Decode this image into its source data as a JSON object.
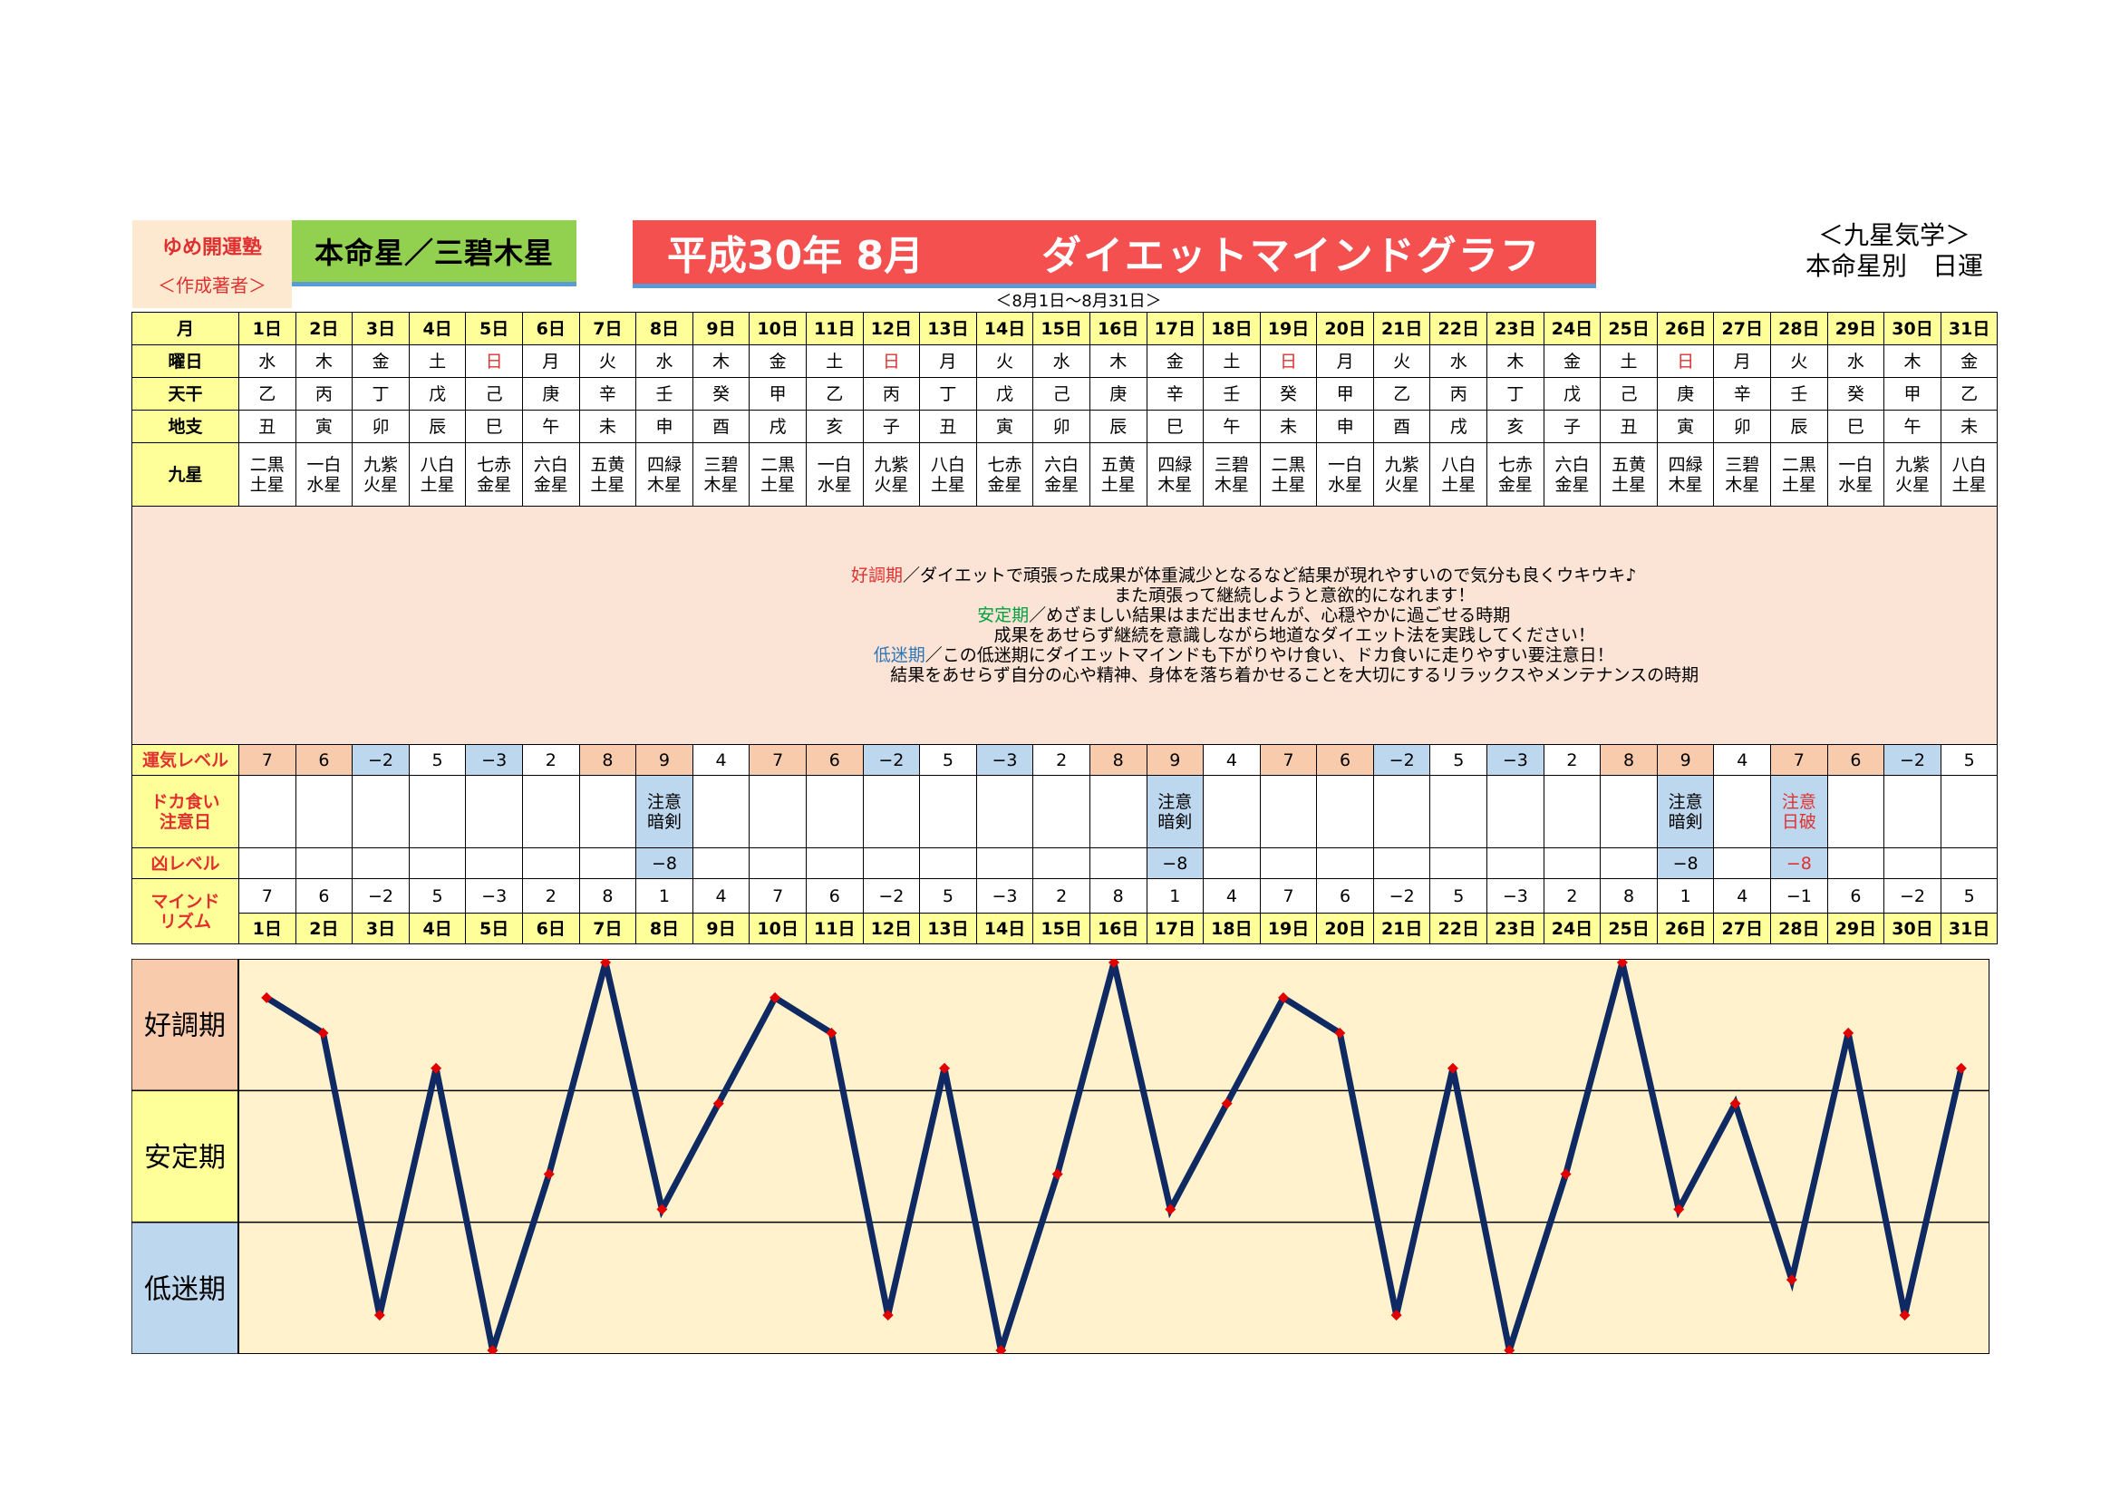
{
  "header": {
    "brand_name": "ゆめ開運塾",
    "brand_sub": "＜作成著者＞",
    "honmei": "本命星／三碧木星",
    "title_date": "平成30年 8月",
    "title_main": "ダイエットマインドグラフ",
    "kyusei_line1": "＜九星気学＞",
    "kyusei_line2": "本命星別　日運",
    "range": "＜8月1日～8月31日＞"
  },
  "row_labels": {
    "month": "月",
    "weekday": "曜日",
    "tenkan": "天干",
    "chishi": "地支",
    "kyusei": "九星",
    "luck": "運気レベル",
    "binge_1": "ドカ食い",
    "binge_2": "注意日",
    "bad": "凶レベル",
    "mind_1": "マインド",
    "mind_2": "リズム"
  },
  "days": [
    "1日",
    "2日",
    "3日",
    "4日",
    "5日",
    "6日",
    "7日",
    "8日",
    "9日",
    "10日",
    "11日",
    "12日",
    "13日",
    "14日",
    "15日",
    "16日",
    "17日",
    "18日",
    "19日",
    "20日",
    "21日",
    "22日",
    "23日",
    "24日",
    "25日",
    "26日",
    "27日",
    "28日",
    "29日",
    "30日",
    "31日"
  ],
  "weekdays": [
    "水",
    "木",
    "金",
    "土",
    "日",
    "月",
    "火",
    "水",
    "木",
    "金",
    "土",
    "日",
    "月",
    "火",
    "水",
    "木",
    "金",
    "土",
    "日",
    "月",
    "火",
    "水",
    "木",
    "金",
    "土",
    "日",
    "月",
    "火",
    "水",
    "木",
    "金"
  ],
  "tenkan": [
    "乙",
    "丙",
    "丁",
    "戊",
    "己",
    "庚",
    "辛",
    "壬",
    "癸",
    "甲",
    "乙",
    "丙",
    "丁",
    "戊",
    "己",
    "庚",
    "辛",
    "壬",
    "癸",
    "甲",
    "乙",
    "丙",
    "丁",
    "戊",
    "己",
    "庚",
    "辛",
    "壬",
    "癸",
    "甲",
    "乙"
  ],
  "chishi": [
    "丑",
    "寅",
    "卯",
    "辰",
    "巳",
    "午",
    "未",
    "申",
    "酉",
    "戌",
    "亥",
    "子",
    "丑",
    "寅",
    "卯",
    "辰",
    "巳",
    "午",
    "未",
    "申",
    "酉",
    "戌",
    "亥",
    "子",
    "丑",
    "寅",
    "卯",
    "辰",
    "巳",
    "午",
    "未"
  ],
  "kyusei_top": [
    "二黒",
    "一白",
    "九紫",
    "八白",
    "七赤",
    "六白",
    "五黄",
    "四緑",
    "三碧",
    "二黒",
    "一白",
    "九紫",
    "八白",
    "七赤",
    "六白",
    "五黄",
    "四緑",
    "三碧",
    "二黒",
    "一白",
    "九紫",
    "八白",
    "七赤",
    "六白",
    "五黄",
    "四緑",
    "三碧",
    "二黒",
    "一白",
    "九紫",
    "八白"
  ],
  "kyusei_bottom": [
    "土星",
    "水星",
    "火星",
    "土星",
    "金星",
    "金星",
    "土星",
    "木星",
    "木星",
    "土星",
    "水星",
    "火星",
    "土星",
    "金星",
    "金星",
    "土星",
    "木星",
    "木星",
    "土星",
    "水星",
    "火星",
    "土星",
    "金星",
    "金星",
    "土星",
    "木星",
    "木星",
    "土星",
    "水星",
    "火星",
    "土星"
  ],
  "description": {
    "good_label": "好調期",
    "good_text_1": "／ダイエットで頑張った成果が体重減少となるなど結果が現れやすいので気分も良くウキウキ♪",
    "good_text_2": "また頑張って継続しようと意欲的になれます！",
    "stable_label": "安定期",
    "stable_text_1": "／めざましい結果はまだ出ませんが、心穏やかに過ごせる時期",
    "stable_text_2": "成果をあせらず継続を意識しながら地道なダイエット法を実践してください！",
    "low_label": "低迷期",
    "low_text_1": "／この低迷期にダイエットマインドも下がりやけ食い、ドカ食いに走りやすい要注意日！",
    "low_text_2": "結果をあせらず自分の心や精神、身体を落ち着かせることを大切にするリラックスやメンテナンスの時期"
  },
  "luck_level": [
    "7",
    "6",
    "−2",
    "5",
    "−3",
    "2",
    "8",
    "9",
    "4",
    "7",
    "6",
    "−2",
    "5",
    "−3",
    "2",
    "8",
    "9",
    "4",
    "7",
    "6",
    "−2",
    "5",
    "−3",
    "2",
    "8",
    "9",
    "4",
    "7",
    "6",
    "−2",
    "5"
  ],
  "warnings": {
    "8": [
      "注意",
      "暗剣"
    ],
    "17": [
      "注意",
      "暗剣"
    ],
    "26": [
      "注意",
      "暗剣"
    ],
    "28": [
      "注意",
      "日破"
    ]
  },
  "bad_level": {
    "8": "−8",
    "17": "−8",
    "26": "−8",
    "28": "−8"
  },
  "mind_rhythm": [
    "7",
    "6",
    "−2",
    "5",
    "−3",
    "2",
    "8",
    "1",
    "4",
    "7",
    "6",
    "−2",
    "5",
    "−3",
    "2",
    "8",
    "1",
    "4",
    "7",
    "6",
    "−2",
    "5",
    "−3",
    "2",
    "8",
    "1",
    "4",
    "−1",
    "6",
    "−2",
    "5"
  ],
  "chart_data": {
    "type": "line",
    "x": [
      1,
      2,
      3,
      4,
      5,
      6,
      7,
      8,
      9,
      10,
      11,
      12,
      13,
      14,
      15,
      16,
      17,
      18,
      19,
      20,
      21,
      22,
      23,
      24,
      25,
      26,
      27,
      28,
      29,
      30,
      31
    ],
    "series": [
      {
        "values": [
          7,
          6,
          -2,
          5,
          -3,
          2,
          8,
          1,
          4,
          7,
          6,
          -2,
          5,
          -3,
          2,
          8,
          1,
          4,
          7,
          6,
          -2,
          5,
          -3,
          2,
          8,
          1,
          4,
          -1,
          6,
          -2,
          5
        ]
      }
    ],
    "ylim": [
      -3,
      8
    ],
    "bands": [
      "好調期",
      "安定期",
      "低迷期"
    ],
    "line_color": "#0f2a63",
    "marker_color": "#e00000",
    "band_colors": [
      "#f8cbad",
      "#ffff99",
      "#bdd7ee"
    ],
    "plot_background": "#fff2cc"
  }
}
